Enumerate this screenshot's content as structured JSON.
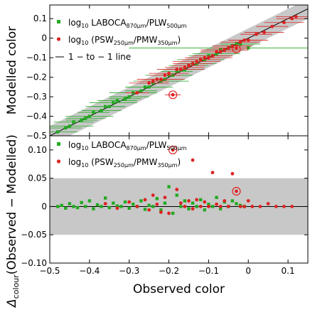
{
  "chart_data": [
    {
      "type": "scatter",
      "panel": "top",
      "ylabel": "Modelled color",
      "xlim": [
        -0.5,
        0.15
      ],
      "ylim": [
        -0.5,
        0.17
      ],
      "xticks": [
        "−0.5",
        "−0.4",
        "−0.3",
        "−0.2",
        "−0.1",
        "0",
        "0.1"
      ],
      "yticks": [
        "0.1",
        "0",
        "−0.1",
        "−0.2",
        "−0.3",
        "−0.4",
        "−0.5"
      ],
      "ytick_values": [
        0.1,
        0,
        -0.1,
        -0.2,
        -0.3,
        -0.4,
        -0.5
      ],
      "legend": {
        "position": "top-left",
        "entries": [
          {
            "pre": "log",
            "sub": "10",
            "main": " LABOCA",
            "sub2": "870μm",
            "mid": "/PLW",
            "sub3": "500μm",
            "post": ""
          },
          {
            "pre": "log",
            "sub": "10",
            "main": " (PSW",
            "sub2": "250μm",
            "mid": "/PMW",
            "sub3": "350μm",
            "post": ")"
          },
          {
            "line_label": "1 − to − 1 line"
          }
        ]
      },
      "one_to_one_line": true,
      "shaded_band": 0.05,
      "series": [
        {
          "name": "log10 LABOCA870μm/PLW500μm",
          "color": "#22aa22",
          "marker": "square",
          "x": [
            -0.48,
            -0.46,
            -0.45,
            -0.44,
            -0.42,
            -0.41,
            -0.4,
            -0.39,
            -0.37,
            -0.36,
            -0.35,
            -0.34,
            -0.33,
            -0.31,
            -0.3,
            -0.29,
            -0.27,
            -0.26,
            -0.25,
            -0.24,
            -0.22,
            -0.21,
            -0.2,
            -0.19,
            -0.18,
            -0.17,
            -0.16,
            -0.15,
            -0.14,
            -0.13,
            -0.12,
            -0.11,
            -0.1,
            -0.09,
            -0.08,
            -0.07,
            -0.06,
            -0.05,
            -0.04,
            -0.03,
            -0.02,
            0.0
          ],
          "y": [
            -0.48,
            -0.46,
            -0.45,
            -0.43,
            -0.42,
            -0.41,
            -0.4,
            -0.38,
            -0.37,
            -0.35,
            -0.35,
            -0.33,
            -0.32,
            -0.31,
            -0.3,
            -0.28,
            -0.27,
            -0.25,
            -0.25,
            -0.23,
            -0.22,
            -0.21,
            -0.19,
            -0.19,
            -0.17,
            -0.16,
            -0.16,
            -0.14,
            -0.13,
            -0.13,
            -0.11,
            -0.11,
            -0.09,
            -0.09,
            -0.08,
            -0.06,
            -0.06,
            -0.05,
            -0.04,
            -0.03,
            -0.03,
            -0.05
          ],
          "xerr": [
            0.05,
            0.04,
            0.06,
            0.05,
            0.04,
            0.05,
            0.06,
            0.04,
            0.05,
            0.05,
            0.04,
            0.06,
            0.05,
            0.04,
            0.05,
            0.06,
            0.04,
            0.05,
            0.06,
            0.04,
            0.07,
            0.05,
            0.06,
            0.05,
            0.04,
            0.06,
            0.05,
            0.05,
            0.04,
            0.05,
            0.06,
            0.04,
            0.05,
            0.05,
            0.06,
            0.04,
            0.05,
            0.04,
            0.05,
            0.04,
            0.05,
            0.3
          ]
        },
        {
          "name": "log10 (PSW250μm/PMW350μm)",
          "color": "#dd2222",
          "marker": "circle",
          "x": [
            -0.28,
            -0.25,
            -0.24,
            -0.23,
            -0.22,
            -0.21,
            -0.2,
            -0.19,
            -0.18,
            -0.17,
            -0.16,
            -0.15,
            -0.14,
            -0.13,
            -0.12,
            -0.11,
            -0.1,
            -0.09,
            -0.08,
            -0.07,
            -0.06,
            -0.05,
            -0.04,
            -0.03,
            -0.02,
            -0.01,
            0.0,
            0.02,
            0.04,
            0.06,
            0.09,
            0.11,
            0.12
          ],
          "y": [
            -0.28,
            -0.23,
            -0.22,
            -0.21,
            -0.21,
            -0.19,
            -0.18,
            -0.29,
            -0.16,
            -0.16,
            -0.15,
            -0.14,
            -0.13,
            -0.12,
            -0.11,
            -0.1,
            -0.1,
            -0.09,
            -0.07,
            -0.07,
            -0.06,
            -0.05,
            -0.04,
            -0.05,
            -0.02,
            -0.01,
            -0.01,
            0.02,
            0.03,
            0.06,
            0.08,
            0.1,
            0.11
          ],
          "xerr": [
            0.03,
            0.05,
            0.04,
            0.05,
            0.06,
            0.04,
            0.05,
            0.02,
            0.04,
            0.06,
            0.05,
            0.04,
            0.05,
            0.06,
            0.05,
            0.04,
            0.06,
            0.05,
            0.04,
            0.05,
            0.06,
            0.04,
            0.05,
            0.03,
            0.05,
            0.04,
            0.05,
            0.04,
            0.05,
            0.04,
            0.05,
            0.04,
            0.05
          ]
        }
      ],
      "circled_points": [
        {
          "x": -0.19,
          "y": -0.29
        },
        {
          "x": -0.03,
          "y": -0.055
        }
      ]
    },
    {
      "type": "scatter",
      "panel": "bottom",
      "xlabel": "Observed color",
      "ylabel_main": "Δ",
      "ylabel_sub": "colour",
      "ylabel_rest": "(Observed − Modelled)",
      "xlim": [
        -0.5,
        0.15
      ],
      "ylim": [
        -0.1,
        0.125
      ],
      "xticks": [
        "−0.5",
        "−0.4",
        "−0.3",
        "−0.2",
        "−0.1",
        "0",
        "0.1"
      ],
      "xtick_values": [
        -0.5,
        -0.4,
        -0.3,
        -0.2,
        -0.1,
        0,
        0.1
      ],
      "yticks": [
        "0.10",
        "0.05",
        "0",
        "−0.05",
        "−0.10"
      ],
      "ytick_values": [
        0.1,
        0.05,
        0,
        -0.05,
        -0.1
      ],
      "shaded_band": [
        -0.05,
        0.05
      ],
      "legend": {
        "position": "top-left",
        "entries": [
          {
            "pre": "log",
            "sub": "10",
            "main": " LABOCA",
            "sub2": "870μm",
            "mid": "/PLW",
            "sub3": "500μm",
            "post": ""
          },
          {
            "pre": "log",
            "sub": "10",
            "main": " (PSW",
            "sub2": "250μm",
            "mid": "/PMW",
            "sub3": "350μm",
            "post": ")"
          }
        ]
      },
      "series": [
        {
          "name": "log10 LABOCA870μm/PLW500μm",
          "color": "#22aa22",
          "marker": "square",
          "x": [
            -0.48,
            -0.47,
            -0.46,
            -0.45,
            -0.44,
            -0.43,
            -0.42,
            -0.41,
            -0.4,
            -0.39,
            -0.38,
            -0.37,
            -0.36,
            -0.35,
            -0.34,
            -0.33,
            -0.32,
            -0.31,
            -0.3,
            -0.29,
            -0.28,
            -0.27,
            -0.26,
            -0.25,
            -0.24,
            -0.23,
            -0.22,
            -0.21,
            -0.2,
            -0.19,
            -0.18,
            -0.17,
            -0.16,
            -0.15,
            -0.14,
            -0.13,
            -0.12,
            -0.11,
            -0.1,
            -0.09,
            -0.08,
            -0.07,
            -0.06,
            -0.05,
            -0.04,
            -0.03,
            -0.02,
            -0.01
          ],
          "y": [
            0.0,
            0.002,
            -0.003,
            0.005,
            0.0,
            -0.002,
            0.007,
            0.0,
            0.01,
            -0.004,
            0.003,
            0.0,
            0.015,
            -0.002,
            0.006,
            0.001,
            0.0,
            0.008,
            -0.003,
            0.004,
            0.0,
            0.01,
            -0.005,
            0.002,
            0.0,
            0.014,
            -0.006,
            0.006,
            0.035,
            -0.012,
            0.02,
            0.0,
            0.01,
            -0.004,
            0.006,
            0.0,
            0.012,
            -0.006,
            0.004,
            0.0,
            0.016,
            -0.004,
            0.008,
            0.0,
            0.01,
            0.005,
            0.002,
            0.0
          ]
        },
        {
          "name": "log10 (PSW250μm/PMW350μm)",
          "color": "#dd2222",
          "marker": "circle",
          "x": [
            -0.36,
            -0.33,
            -0.3,
            -0.28,
            -0.26,
            -0.25,
            -0.24,
            -0.23,
            -0.22,
            -0.21,
            -0.2,
            -0.19,
            -0.18,
            -0.17,
            -0.16,
            -0.15,
            -0.14,
            -0.13,
            -0.12,
            -0.11,
            -0.1,
            -0.09,
            -0.08,
            -0.07,
            -0.06,
            -0.05,
            -0.04,
            -0.03,
            -0.02,
            -0.01,
            0.0,
            0.01,
            0.03,
            0.05,
            0.07,
            0.09,
            0.11
          ],
          "y": [
            0.005,
            -0.003,
            0.008,
            0.0,
            0.012,
            -0.006,
            0.02,
            0.004,
            -0.01,
            0.016,
            -0.012,
            0.1,
            0.03,
            0.006,
            0.0,
            0.01,
            -0.004,
            0.012,
            0.0,
            0.008,
            0.0,
            0.06,
            0.004,
            0.0,
            0.01,
            0.0,
            0.058,
            0.027,
            0.0,
            0.0,
            0.01,
            0.0,
            0.0,
            0.005,
            0.0,
            0.0,
            0.0
          ]
        }
      ],
      "outlier_point": {
        "x": -0.14,
        "y": 0.082
      },
      "circled_points": [
        {
          "x": -0.19,
          "y": 0.1
        },
        {
          "x": -0.03,
          "y": 0.027
        }
      ]
    }
  ]
}
